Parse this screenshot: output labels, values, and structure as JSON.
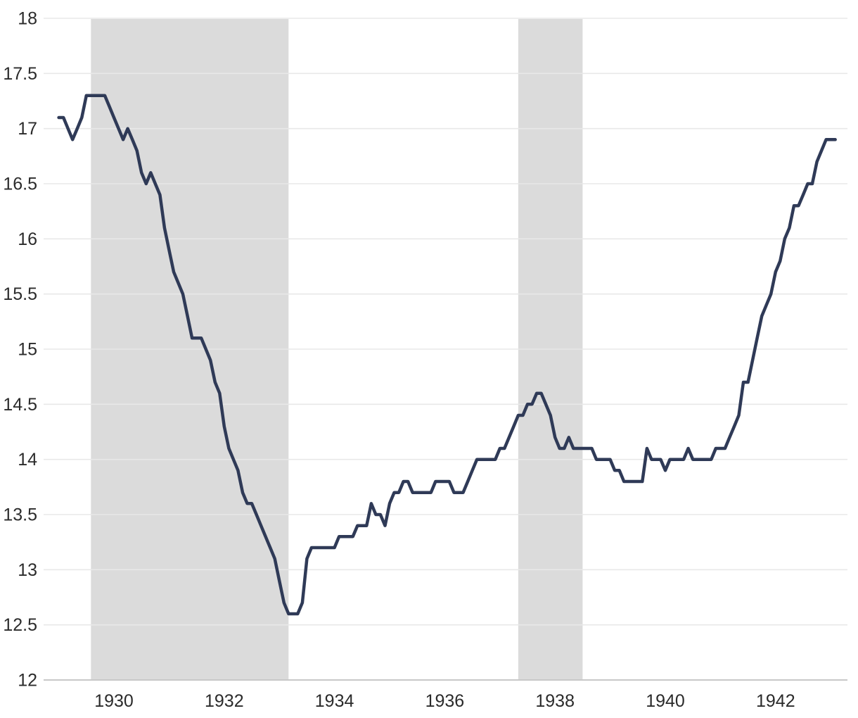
{
  "chart_data": {
    "type": "line",
    "frequency": "monthly",
    "start_date": "1929-01",
    "end_date": "1943-02",
    "values_by_year": {
      "1929": [
        17.1,
        17.1,
        17.0,
        16.9,
        17.0,
        17.1,
        17.3,
        17.3,
        17.3,
        17.3,
        17.3,
        17.2
      ],
      "1930": [
        17.1,
        17.0,
        16.9,
        17.0,
        16.9,
        16.8,
        16.6,
        16.5,
        16.6,
        16.5,
        16.4,
        16.1
      ],
      "1931": [
        15.9,
        15.7,
        15.6,
        15.5,
        15.3,
        15.1,
        15.1,
        15.1,
        15.0,
        14.9,
        14.7,
        14.6
      ],
      "1932": [
        14.3,
        14.1,
        14.0,
        13.9,
        13.7,
        13.6,
        13.6,
        13.5,
        13.4,
        13.3,
        13.2,
        13.1
      ],
      "1933": [
        12.9,
        12.7,
        12.6,
        12.6,
        12.6,
        12.7,
        13.1,
        13.2,
        13.2,
        13.2,
        13.2,
        13.2
      ],
      "1934": [
        13.2,
        13.3,
        13.3,
        13.3,
        13.3,
        13.4,
        13.4,
        13.4,
        13.6,
        13.5,
        13.5,
        13.4
      ],
      "1935": [
        13.6,
        13.7,
        13.7,
        13.8,
        13.8,
        13.7,
        13.7,
        13.7,
        13.7,
        13.7,
        13.8,
        13.8
      ],
      "1936": [
        13.8,
        13.8,
        13.7,
        13.7,
        13.7,
        13.8,
        13.9,
        14.0,
        14.0,
        14.0,
        14.0,
        14.0
      ],
      "1937": [
        14.1,
        14.1,
        14.2,
        14.3,
        14.4,
        14.4,
        14.5,
        14.5,
        14.6,
        14.6,
        14.5,
        14.4
      ],
      "1938": [
        14.2,
        14.1,
        14.1,
        14.2,
        14.1,
        14.1,
        14.1,
        14.1,
        14.1,
        14.0,
        14.0,
        14.0
      ],
      "1939": [
        14.0,
        13.9,
        13.9,
        13.8,
        13.8,
        13.8,
        13.8,
        13.8,
        14.1,
        14.0,
        14.0,
        14.0
      ],
      "1940": [
        13.9,
        14.0,
        14.0,
        14.0,
        14.0,
        14.1,
        14.0,
        14.0,
        14.0,
        14.0,
        14.0,
        14.1
      ],
      "1941": [
        14.1,
        14.1,
        14.2,
        14.3,
        14.4,
        14.7,
        14.7,
        14.9,
        15.1,
        15.3,
        15.4,
        15.5
      ],
      "1942": [
        15.7,
        15.8,
        16.0,
        16.1,
        16.3,
        16.3,
        16.4,
        16.5,
        16.5,
        16.7,
        16.8,
        16.9
      ],
      "1943": [
        16.9,
        16.9
      ]
    },
    "ylim": [
      12,
      18
    ],
    "xlim": [
      1928.724,
      1943.304
    ],
    "y_ticks": [
      18,
      17.5,
      17,
      16.5,
      16,
      15.5,
      15,
      14.5,
      14,
      13.5,
      13,
      12.5,
      12
    ],
    "y_tick_labels": [
      "18",
      "17.5",
      "17",
      "16.5",
      "16",
      "15.5",
      "15",
      "14.5",
      "14",
      "13.5",
      "13",
      "12.5",
      "12"
    ],
    "x_tick_labels": [
      "1930",
      "1932",
      "1934",
      "1936",
      "1938",
      "1940",
      "1942"
    ],
    "grid": true,
    "legend": "none",
    "recession_bands": [
      {
        "start": 1929.583,
        "end": 1933.167
      },
      {
        "start": 1937.333,
        "end": 1938.5
      }
    ],
    "colors": {
      "line": "#2f3a57",
      "band": "#dbdbdb",
      "grid": "#e8e8e8",
      "axis": "#c8c8c8",
      "tick_text": "#2b2b2b",
      "background": "#ffffff"
    }
  }
}
